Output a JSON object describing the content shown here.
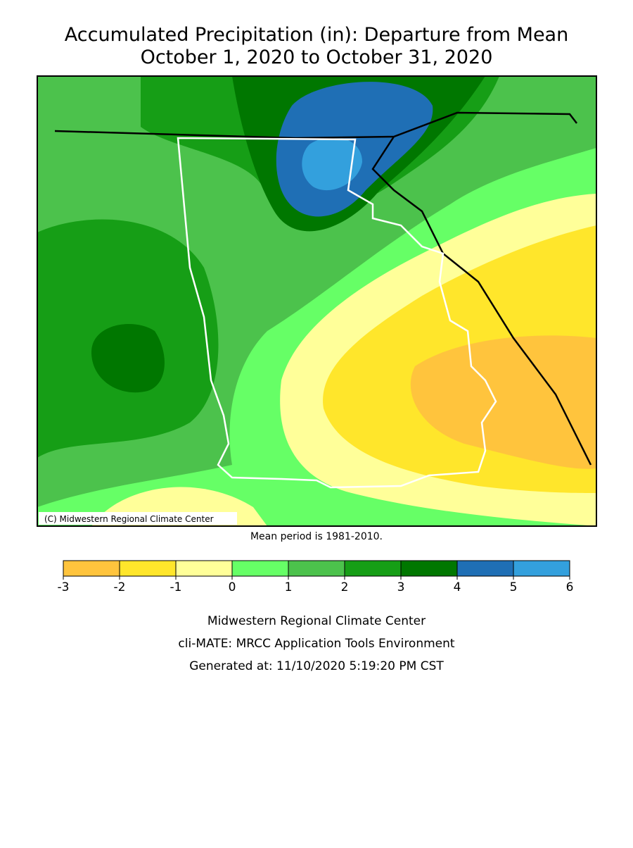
{
  "title": [
    "Accumulated Precipitation (in): Departure from Mean",
    "October 1, 2020 to October 31, 2020"
  ],
  "map": {
    "copyright": "(C) Midwestern Regional Climate Center",
    "note": "Mean period is 1981-2010."
  },
  "legend": {
    "bins": [
      -3,
      -2,
      -1,
      0,
      1,
      2,
      3,
      4,
      5,
      6
    ],
    "colors": [
      "#ffc43d",
      "#ffe62b",
      "#ffff99",
      "#66ff66",
      "#4cc24c",
      "#169e16",
      "#007700",
      "#1f6fb5",
      "#33a0dd"
    ]
  },
  "footer": [
    "Midwestern Regional Climate Center",
    "cli-MATE: MRCC Application Tools Environment",
    "Generated at: 11/10/2020 5:19:20 PM CST"
  ]
}
